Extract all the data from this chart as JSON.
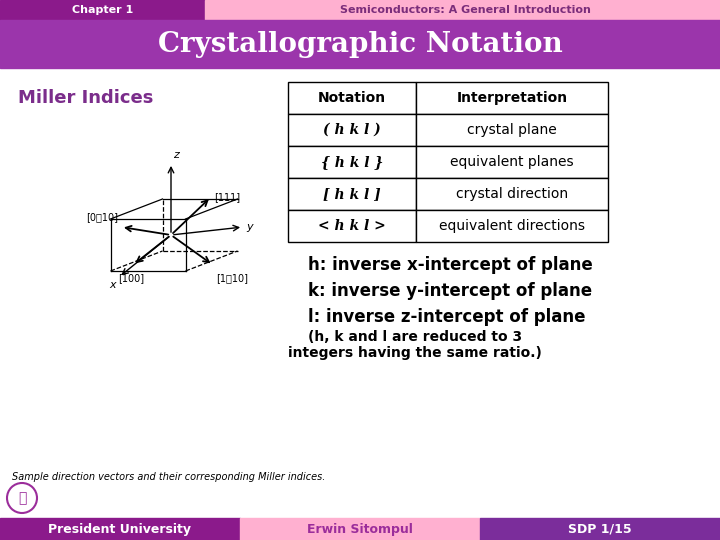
{
  "title_text": "Crystallographic Notation",
  "chapter_label": "Chapter 1",
  "chapter_subtitle": "Semiconductors: A General Introduction",
  "bg_color": "#FFFFFF",
  "miller_indices_color": "#7B2D8B",
  "miller_indices_text": "Miller Indices",
  "table_headers": [
    "Notation",
    "Interpretation"
  ],
  "table_rows": [
    [
      "( h k l )",
      "crystal plane"
    ],
    [
      "{ h k l }",
      "equivalent planes"
    ],
    [
      "[ h k l ]",
      "crystal direction"
    ],
    [
      "< h k l >",
      "equivalent directions"
    ]
  ],
  "footer_left_text": "President University",
  "footer_mid_text": "Erwin Sitompul",
  "footer_right_text": "SDP 1/15",
  "footer_left_color": "#8B1A8B",
  "footer_mid_color": "#FFB0D0",
  "footer_right_color": "#7B2D9B",
  "footer_text_color": "#FFFFFF",
  "caption_text": "Sample direction vectors and their corresponding Miller indices.",
  "header_left_color": "#8B1A8B",
  "header_right_color": "#FFB0D0",
  "title_band_color": "#9B35AB",
  "chapter_text_color": "#FFFFFF",
  "subtitle_text_color": "#7B2D7B"
}
